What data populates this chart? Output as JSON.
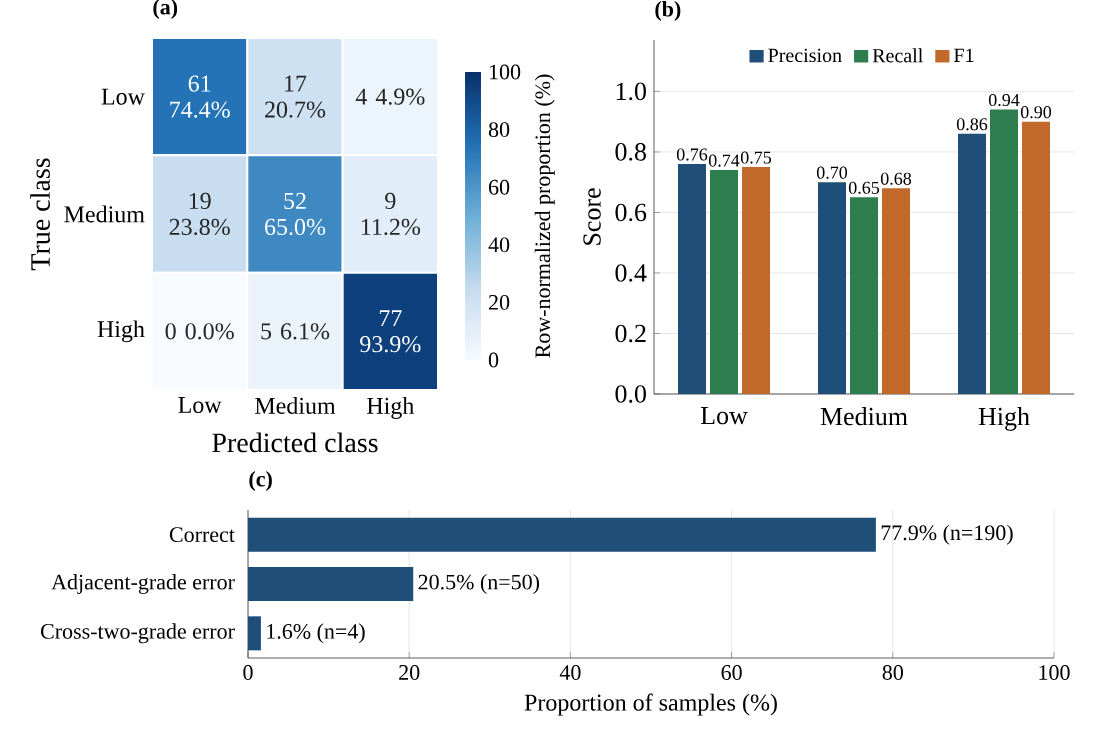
{
  "chart_data": [
    {
      "type": "heatmap",
      "title": "(a)",
      "xlabel": "Predicted class",
      "ylabel": "True class",
      "categories": [
        "Low",
        "Medium",
        "High"
      ],
      "y_categories": [
        "Low",
        "Medium",
        "High"
      ],
      "cells": [
        [
          74.4,
          20.7,
          4.9
        ],
        [
          23.8,
          65.0,
          11.2
        ],
        [
          0.0,
          6.1,
          93.9
        ]
      ],
      "cell_labels": [
        [
          "61 74.4%",
          "17 20.7%",
          "4 4.9%"
        ],
        [
          "19 23.8%",
          "52 65.0%",
          "9 11.2%"
        ],
        [
          "0 0.0%",
          "5 6.1%",
          "77 93.9%"
        ]
      ],
      "clim": [
        0,
        100
      ],
      "cticks": [
        0,
        20,
        40,
        60,
        80,
        100
      ],
      "clabel": "Row-normalized proportion (%)"
    },
    {
      "type": "bar",
      "title": "(b)",
      "ylabel": "Score",
      "categories": [
        "Low",
        "Medium",
        "High"
      ],
      "series": [
        {
          "name": "Precision",
          "color": "#1f4e79",
          "values": [
            0.76,
            0.7,
            0.86
          ],
          "value_labels": [
            "0.76",
            "0.70",
            "0.86"
          ]
        },
        {
          "name": "Recall",
          "color": "#2e7d4f",
          "values": [
            0.74,
            0.65,
            0.94
          ],
          "value_labels": [
            "0.74",
            "0.65",
            "0.94"
          ]
        },
        {
          "name": "F1",
          "color": "#c0692a",
          "values": [
            0.75,
            0.68,
            0.9
          ],
          "value_labels": [
            "0.75",
            "0.68",
            "0.90"
          ]
        }
      ],
      "ylim": [
        0,
        1.17
      ],
      "yticks": [
        {
          "value": 0,
          "label": "0.0"
        },
        0.2,
        0.4,
        0.6,
        0.8,
        {
          "value": 1.0,
          "label": "1.0"
        }
      ],
      "grid": "y",
      "legend": "top"
    },
    {
      "type": "bar",
      "orientation": "horizontal",
      "title": "(c)",
      "xlabel": "Proportion of samples (%)",
      "categories": [
        "Correct",
        "Adjacent-grade error",
        "Cross-two-grade error"
      ],
      "values": [
        77.9,
        20.5,
        1.6
      ],
      "value_labels": [
        "77.9% (n=190)",
        "20.5% (n=50)",
        "1.6% (n=4)"
      ],
      "color": "#1f4e79",
      "xlim": [
        0,
        100
      ],
      "xticks": [
        0,
        20,
        40,
        60,
        80,
        100
      ],
      "grid": "x"
    }
  ]
}
